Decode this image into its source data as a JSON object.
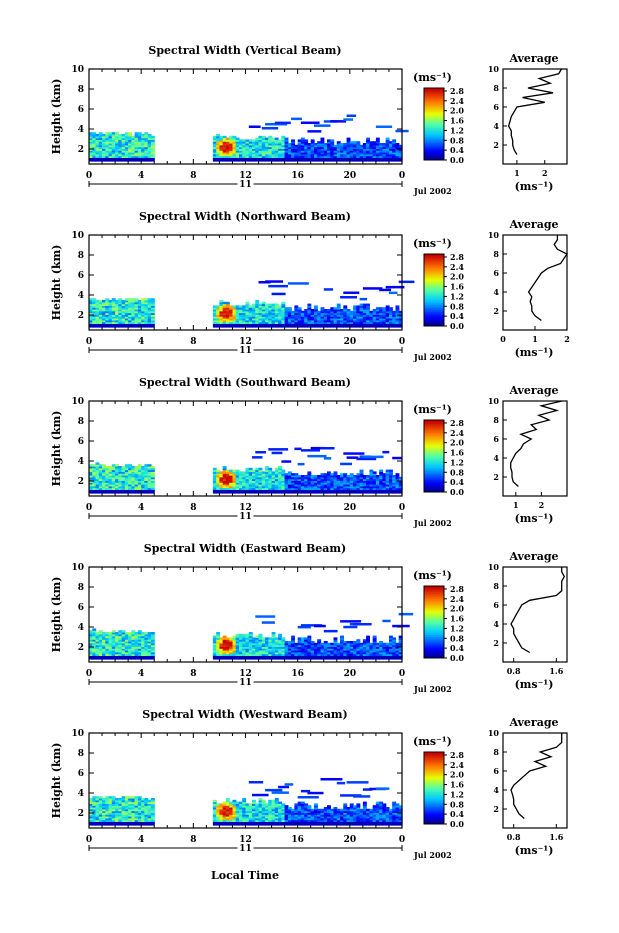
{
  "figure": {
    "x_axis_label": "Local Time",
    "day_label": "11",
    "date_label": "Jul 2002",
    "colorbar_unit": "(ms⁻¹)",
    "colorbar_ticks": [
      "0.0",
      "0.4",
      "0.8",
      "1.2",
      "1.6",
      "2.0",
      "2.4",
      "2.8"
    ],
    "height_label": "Height (km)",
    "height_ticks": [
      "2",
      "4",
      "6",
      "8",
      "10"
    ],
    "time_ticks": [
      "0",
      "4",
      "8",
      "12",
      "16",
      "20",
      "0"
    ],
    "average_title": "Average",
    "average_unit": "(ms⁻¹)"
  },
  "chart_data": [
    {
      "type": "heatmap",
      "title": "Spectral Width (Vertical Beam)",
      "ylabel": "Height (km)",
      "xlabel": "",
      "xlim": [
        0,
        24
      ],
      "ylim": [
        0,
        10
      ],
      "colorbar_range": [
        0.0,
        3.0
      ],
      "average_profile": {
        "title": "Average",
        "xlabel": "(ms⁻¹)",
        "x_ticks": [
          "1",
          "2"
        ],
        "xlim": [
          0.5,
          2.8
        ],
        "heights": [
          1,
          1.5,
          2,
          2.5,
          3,
          3.5,
          4,
          4.5,
          5,
          5.5,
          6,
          6.5,
          7,
          7.5,
          8,
          8.5,
          9,
          9.5,
          10
        ],
        "values": [
          1.0,
          0.9,
          0.85,
          0.85,
          0.8,
          0.8,
          0.7,
          0.75,
          0.8,
          0.9,
          1.0,
          2.0,
          1.2,
          2.3,
          1.4,
          2.2,
          1.8,
          2.5,
          2.6
        ]
      }
    },
    {
      "type": "heatmap",
      "title": "Spectral Width (Northward Beam)",
      "ylabel": "Height (km)",
      "xlabel": "",
      "xlim": [
        0,
        24
      ],
      "ylim": [
        0,
        10
      ],
      "colorbar_range": [
        0.0,
        3.0
      ],
      "average_profile": {
        "title": "Average",
        "xlabel": "(ms⁻¹)",
        "x_ticks": [
          "0",
          "1",
          "2"
        ],
        "xlim": [
          0,
          2
        ],
        "heights": [
          1,
          1.5,
          2,
          2.5,
          3,
          3.5,
          4,
          4.5,
          5,
          5.5,
          6,
          6.5,
          7,
          7.5,
          8,
          8.5,
          9,
          9.5,
          10
        ],
        "values": [
          1.2,
          1.0,
          0.9,
          0.9,
          0.85,
          0.9,
          0.8,
          0.9,
          1.0,
          1.1,
          1.2,
          1.4,
          1.8,
          1.9,
          2.0,
          1.7,
          1.6,
          1.7,
          1.7
        ]
      }
    },
    {
      "type": "heatmap",
      "title": "Spectral Width (Southward Beam)",
      "ylabel": "Height (km)",
      "xlabel": "",
      "xlim": [
        0,
        24
      ],
      "ylim": [
        0,
        10
      ],
      "colorbar_range": [
        0.0,
        3.0
      ],
      "average_profile": {
        "title": "Average",
        "xlabel": "(ms⁻¹)",
        "x_ticks": [
          "1",
          "2"
        ],
        "xlim": [
          0.5,
          3.0
        ],
        "heights": [
          1,
          1.5,
          2,
          2.5,
          3,
          3.5,
          4,
          4.5,
          5,
          5.5,
          6,
          6.5,
          7,
          7.5,
          8,
          8.5,
          9,
          9.5,
          10
        ],
        "values": [
          1.1,
          0.9,
          0.85,
          0.85,
          0.8,
          0.8,
          0.9,
          1.0,
          1.2,
          1.3,
          1.6,
          1.2,
          1.8,
          1.6,
          2.3,
          1.9,
          2.6,
          2.0,
          2.8
        ]
      }
    },
    {
      "type": "heatmap",
      "title": "Spectral Width (Eastward Beam)",
      "ylabel": "Height (km)",
      "xlabel": "",
      "xlim": [
        0,
        24
      ],
      "ylim": [
        0,
        10
      ],
      "colorbar_range": [
        0.0,
        3.0
      ],
      "average_profile": {
        "title": "Average",
        "xlabel": "(ms⁻¹)",
        "x_ticks": [
          "0.8",
          "1.6"
        ],
        "xlim": [
          0.6,
          1.8
        ],
        "heights": [
          1,
          1.5,
          2,
          2.5,
          3,
          3.5,
          4,
          4.5,
          5,
          5.5,
          6,
          6.5,
          7,
          7.5,
          8,
          8.5,
          9,
          9.5,
          10
        ],
        "values": [
          1.1,
          0.95,
          0.9,
          0.85,
          0.8,
          0.8,
          0.75,
          0.8,
          0.85,
          0.9,
          0.95,
          1.1,
          1.6,
          1.7,
          1.7,
          1.7,
          1.75,
          1.7,
          1.7
        ]
      }
    },
    {
      "type": "heatmap",
      "title": "Spectral Width (Westward Beam)",
      "ylabel": "Height (km)",
      "xlabel": "Local Time",
      "xlim": [
        0,
        24
      ],
      "ylim": [
        0,
        10
      ],
      "colorbar_range": [
        0.0,
        3.0
      ],
      "average_profile": {
        "title": "Average",
        "xlabel": "(ms⁻¹)",
        "x_ticks": [
          "0.8",
          "1.6"
        ],
        "xlim": [
          0.6,
          1.8
        ],
        "heights": [
          1,
          1.5,
          2,
          2.5,
          3,
          3.5,
          4,
          4.5,
          5,
          5.5,
          6,
          6.5,
          7,
          7.5,
          8,
          8.5,
          9,
          9.5,
          10
        ],
        "values": [
          1.0,
          0.9,
          0.85,
          0.8,
          0.8,
          0.78,
          0.75,
          0.8,
          0.9,
          1.0,
          1.1,
          1.4,
          1.2,
          1.5,
          1.3,
          1.6,
          1.7,
          1.7,
          1.7
        ]
      }
    }
  ]
}
